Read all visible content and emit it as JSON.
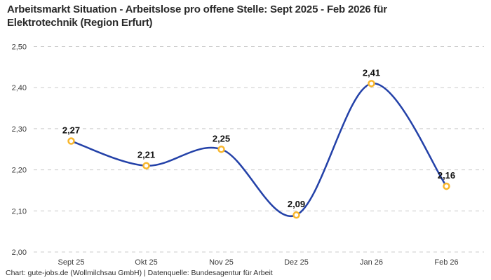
{
  "header": {
    "title": "Arbeitsmarkt Situation - Arbeitslose pro offene Stelle: Sept 2025 - Feb 2026 für Elektrotechnik (Region Erfurt)",
    "title_lines": [
      "Arbeitsmarkt Situation - Arbeitslose pro offene Stelle: Sept 2025 - Feb 2026 für",
      "Elektrotechnik (Region Erfurt)"
    ]
  },
  "footer": {
    "text": "Chart: gute-jobs.de (Wollmilchsau GmbH) | Datenquelle: Bundesagentur für Arbeit"
  },
  "chart_data": {
    "type": "line",
    "title": "Arbeitsmarkt Situation - Arbeitslose pro offene Stelle: Sept 2025 - Feb 2026 für Elektrotechnik (Region Erfurt)",
    "categories": [
      "Sept 25",
      "Okt 25",
      "Nov 25",
      "Dez 25",
      "Jan 26",
      "Feb 26"
    ],
    "values": [
      2.27,
      2.21,
      2.25,
      2.09,
      2.41,
      2.16
    ],
    "value_labels": [
      "2,27",
      "2,21",
      "2,25",
      "2,09",
      "2,41",
      "2,16"
    ],
    "ylim": [
      2.0,
      2.5
    ],
    "ytick_values": [
      2.0,
      2.1,
      2.2,
      2.3,
      2.4,
      2.5
    ],
    "ytick_labels": [
      "2,00",
      "2,10",
      "2,20",
      "2,30",
      "2,40",
      "2,50"
    ],
    "xlabel": "",
    "ylabel": "",
    "legend": "none",
    "grid": "horizontal-dashed",
    "colors": {
      "line": "#2341a8",
      "marker_fill": "#ffffff",
      "marker_stroke": "#f8b62c",
      "grid": "#cccccc",
      "axis_text": "#3d3d3d",
      "value_label": "#0f0f0f"
    }
  }
}
